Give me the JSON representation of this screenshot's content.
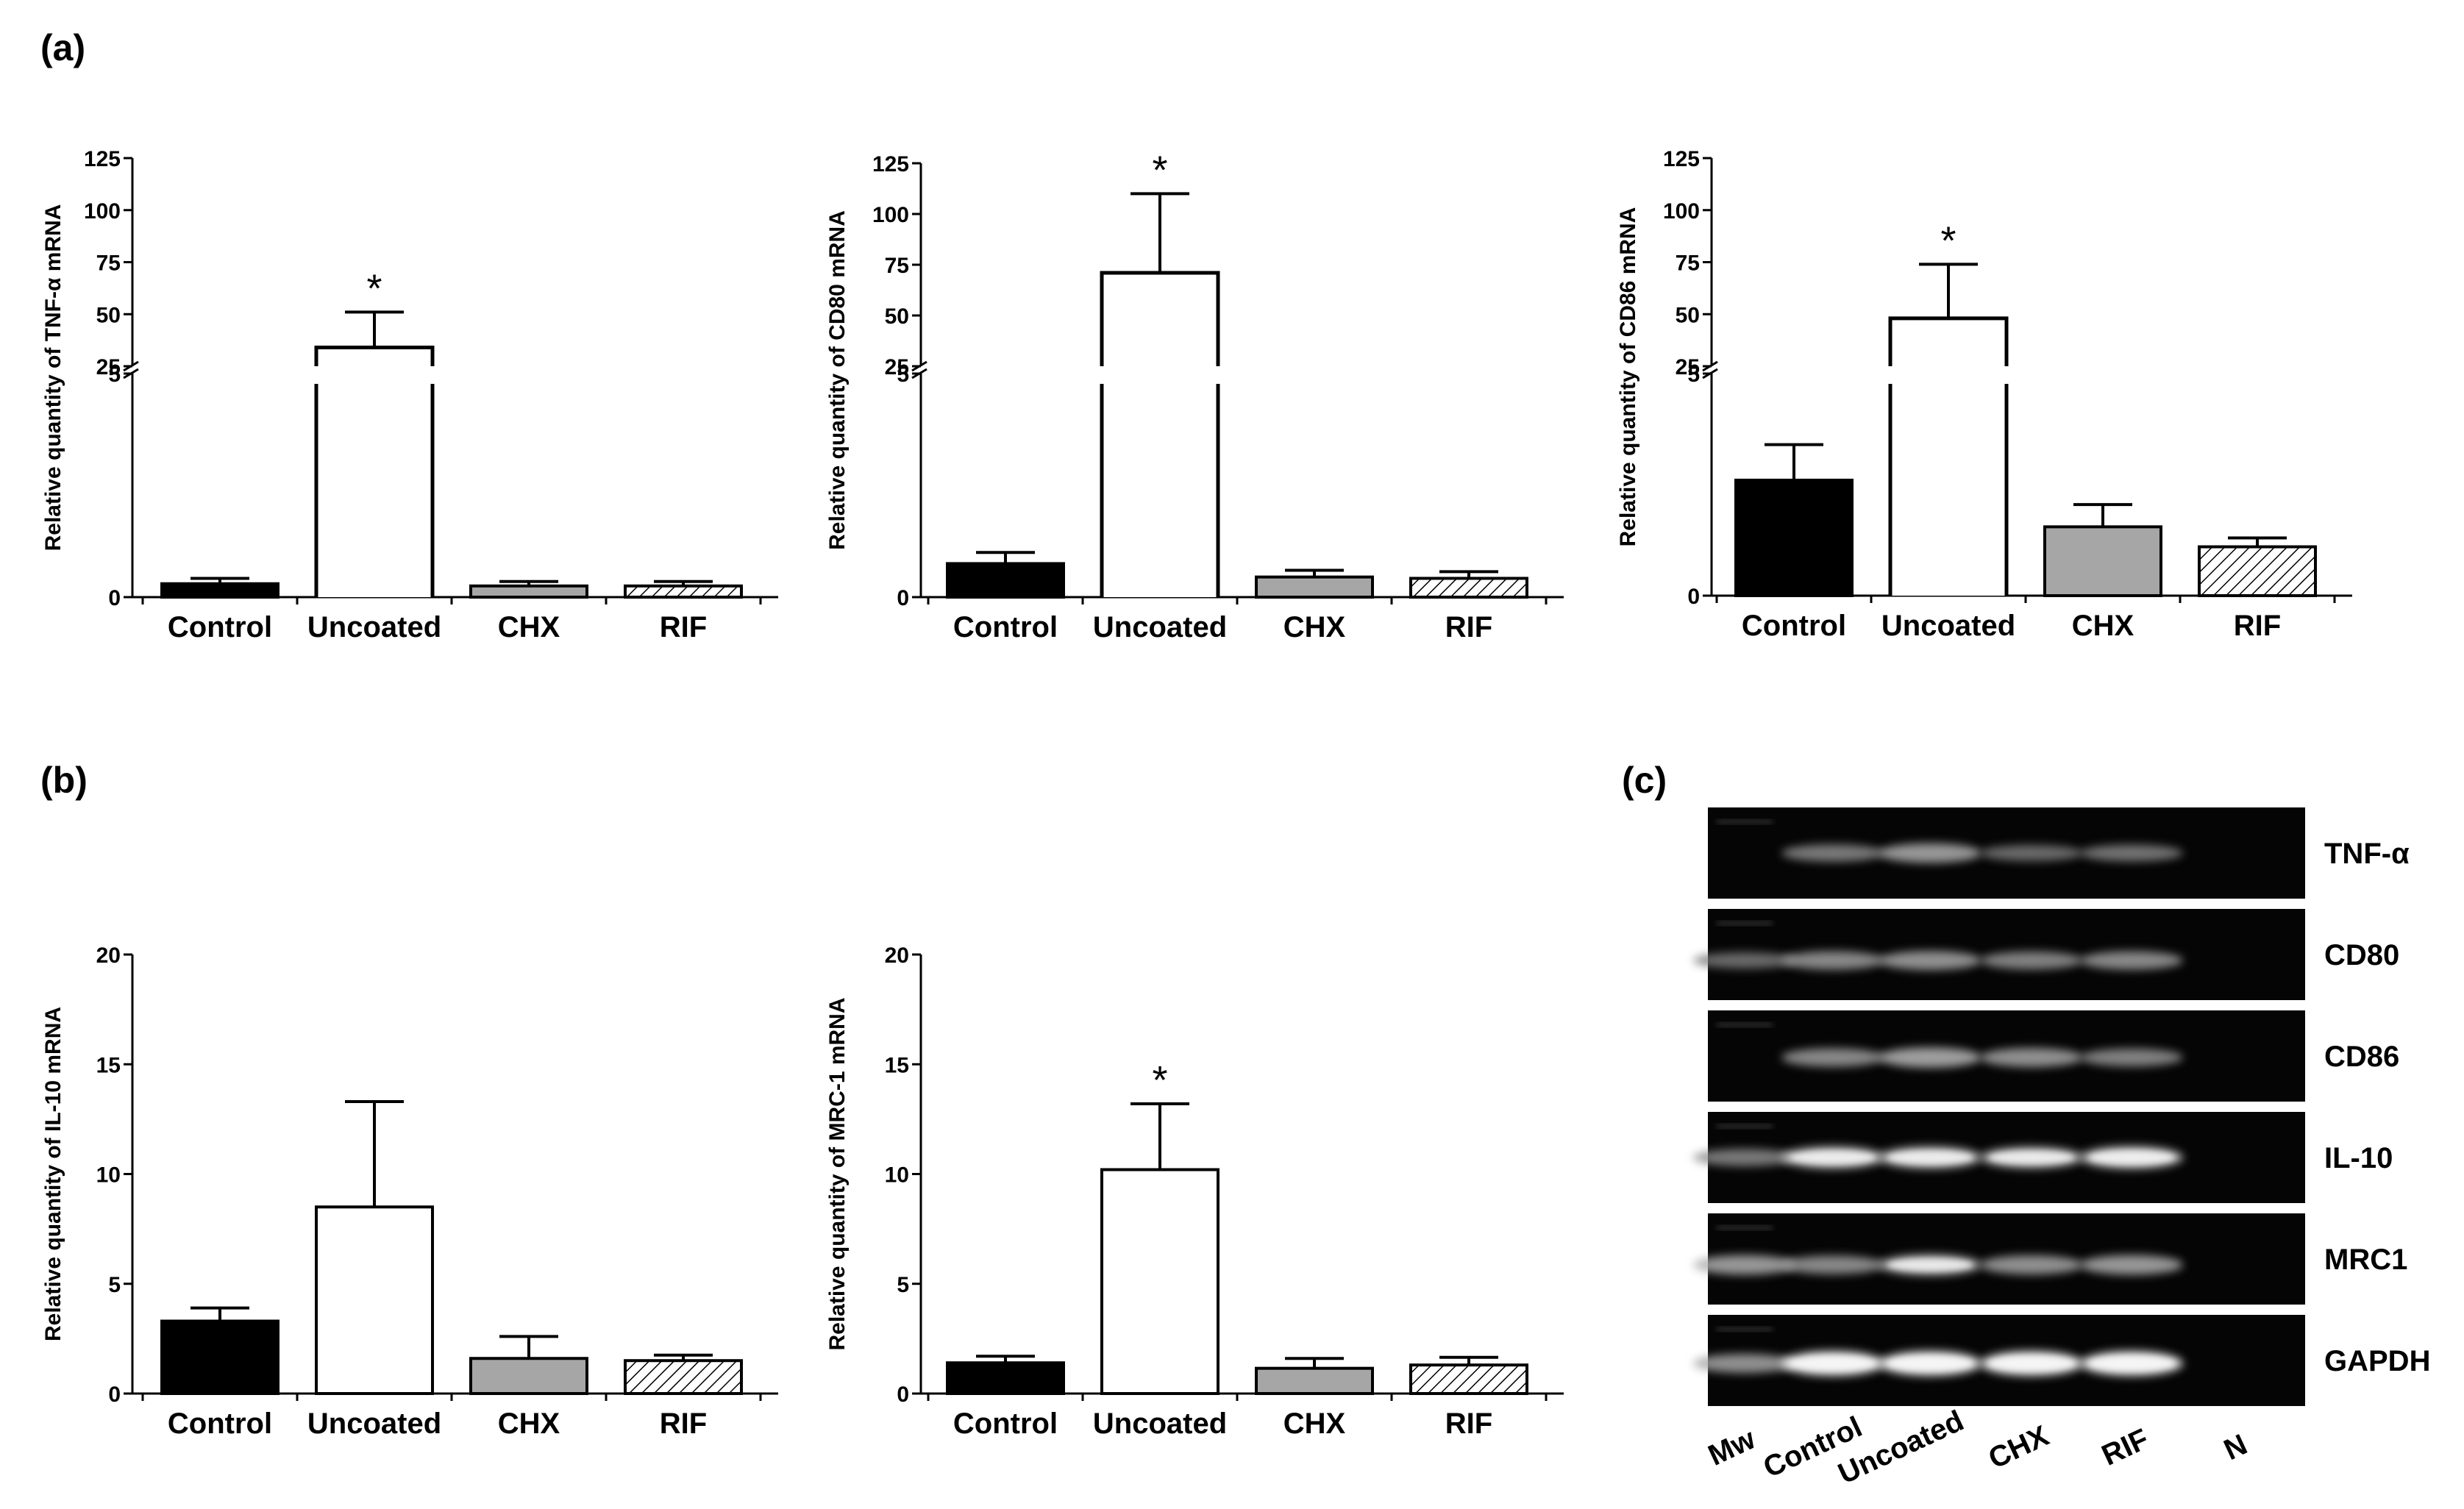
{
  "panels": {
    "a": "(a)",
    "b": "(b)",
    "c": "(c)"
  },
  "colors": {
    "Control": "#000000",
    "Uncoated": "#ffffff",
    "CHX": "#a6a6a6",
    "RIF": "hatched"
  },
  "chart_data": [
    {
      "type": "bar",
      "panel": "(a)",
      "ylabel": "Relative quantity of  TNF-α mRNA",
      "categories": [
        "Control",
        "Uncoated",
        "CHX",
        "RIF"
      ],
      "values": [
        0.3,
        34,
        0.25,
        0.25
      ],
      "errors": [
        0.12,
        17,
        0.1,
        0.1
      ],
      "significance": [
        "",
        "*",
        "",
        ""
      ],
      "broken_axis": true,
      "lower_ticks": [
        "0",
        "5"
      ],
      "upper_ticks": [
        "25",
        "50",
        "75",
        "100",
        "125"
      ],
      "ylim_lower": [
        0,
        5
      ],
      "ylim_upper": [
        25,
        125
      ]
    },
    {
      "type": "bar",
      "panel": "(a)",
      "ylabel": "Relative quantity of CD80 mRNA",
      "categories": [
        "Control",
        "Uncoated",
        "CHX",
        "RIF"
      ],
      "values": [
        0.75,
        71,
        0.45,
        0.42
      ],
      "errors": [
        0.25,
        39,
        0.15,
        0.15
      ],
      "significance": [
        "",
        "*",
        "",
        ""
      ],
      "broken_axis": true,
      "lower_ticks": [
        "0",
        "5"
      ],
      "upper_ticks": [
        "25",
        "50",
        "75",
        "100",
        "125"
      ],
      "ylim_lower": [
        0,
        5
      ],
      "ylim_upper": [
        25,
        125
      ]
    },
    {
      "type": "bar",
      "panel": "(a)",
      "ylabel": "Relative quantity of CD86 mRNA",
      "categories": [
        "Control",
        "Uncoated",
        "CHX",
        "RIF"
      ],
      "values": [
        2.6,
        48,
        1.55,
        1.1
      ],
      "errors": [
        0.8,
        26,
        0.5,
        0.2
      ],
      "significance": [
        "",
        "*",
        "",
        ""
      ],
      "broken_axis": true,
      "lower_ticks": [
        "0",
        "5"
      ],
      "upper_ticks": [
        "25",
        "50",
        "75",
        "100",
        "125"
      ],
      "ylim_lower": [
        0,
        5
      ],
      "ylim_upper": [
        25,
        125
      ]
    },
    {
      "type": "bar",
      "panel": "(b)",
      "ylabel": "Relative quantity of IL-10 mRNA",
      "categories": [
        "Control",
        "Uncoated",
        "CHX",
        "RIF"
      ],
      "values": [
        3.3,
        8.5,
        1.6,
        1.5
      ],
      "errors": [
        0.6,
        4.8,
        1.0,
        0.25
      ],
      "significance": [
        "",
        "",
        "",
        ""
      ],
      "broken_axis": false,
      "ticks": [
        "0",
        "5",
        "10",
        "15",
        "20"
      ],
      "ylim": [
        0,
        20
      ]
    },
    {
      "type": "bar",
      "panel": "(b)",
      "ylabel": "Relative quantity of MRC-1 mRNA",
      "categories": [
        "Control",
        "Uncoated",
        "CHX",
        "RIF"
      ],
      "values": [
        1.4,
        10.2,
        1.15,
        1.3
      ],
      "errors": [
        0.3,
        3.0,
        0.45,
        0.35
      ],
      "significance": [
        "",
        "*",
        "",
        ""
      ],
      "broken_axis": false,
      "ticks": [
        "0",
        "5",
        "10",
        "15",
        "20"
      ],
      "ylim": [
        0,
        20
      ]
    }
  ],
  "gel": {
    "genes": [
      "TNF-α",
      "CD80",
      "CD86",
      "IL-10",
      "MRC1",
      "GAPDH"
    ],
    "lanes": [
      "Mw",
      "Control",
      "Uncoated",
      "CHX",
      "RIF",
      "N"
    ]
  }
}
